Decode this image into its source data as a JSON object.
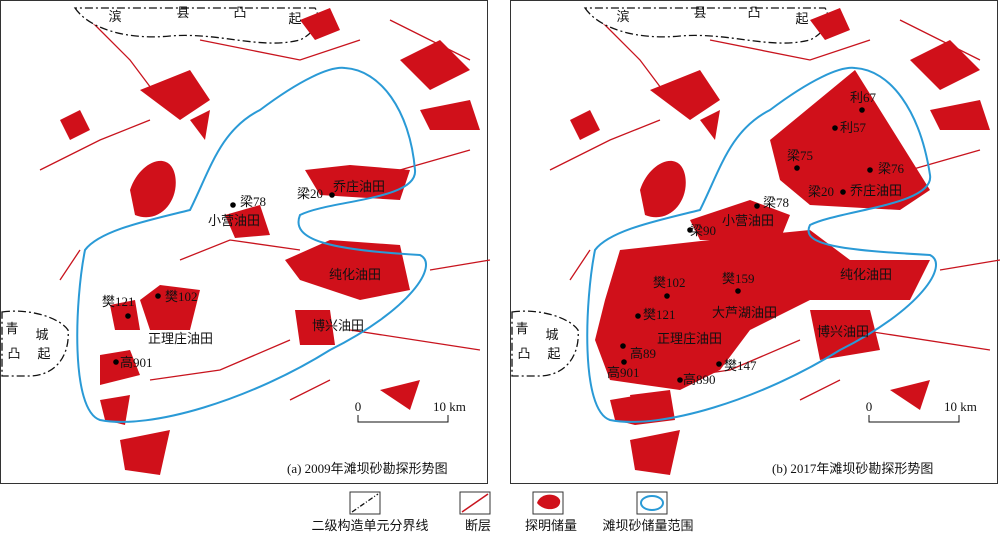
{
  "panels": [
    {
      "caption": "(a) 2009年滩坝砂勘探形势图",
      "uplift_north": [
        "滨",
        "县",
        "凸",
        "起"
      ],
      "uplift_west": [
        "青",
        "城",
        "凸",
        "起"
      ],
      "wells": [
        "梁78",
        "梁20",
        "樊121",
        "樊102",
        "高901"
      ],
      "oilfields": [
        "乔庄油田",
        "小营油田",
        "纯化油田",
        "正理庄油田",
        "博兴油田"
      ],
      "scale": [
        "0",
        "10 km"
      ]
    },
    {
      "caption": "(b) 2017年滩坝砂勘探形势图",
      "uplift_north": [
        "滨",
        "县",
        "凸",
        "起"
      ],
      "uplift_west": [
        "青",
        "城",
        "凸",
        "起"
      ],
      "wells": [
        "利67",
        "利57",
        "梁75",
        "梁76",
        "梁20",
        "梁78",
        "梁90",
        "樊102",
        "樊159",
        "樊121",
        "高89",
        "樊147",
        "高901",
        "高890"
      ],
      "oilfields": [
        "乔庄油田",
        "小营油田",
        "纯化油田",
        "大芦湖油田",
        "正理庄油田",
        "博兴油田"
      ],
      "scale": [
        "0",
        "10 km"
      ]
    }
  ],
  "legend": [
    "二级构造单元分界线",
    "断层",
    "探明储量",
    "滩坝砂储量范围"
  ]
}
